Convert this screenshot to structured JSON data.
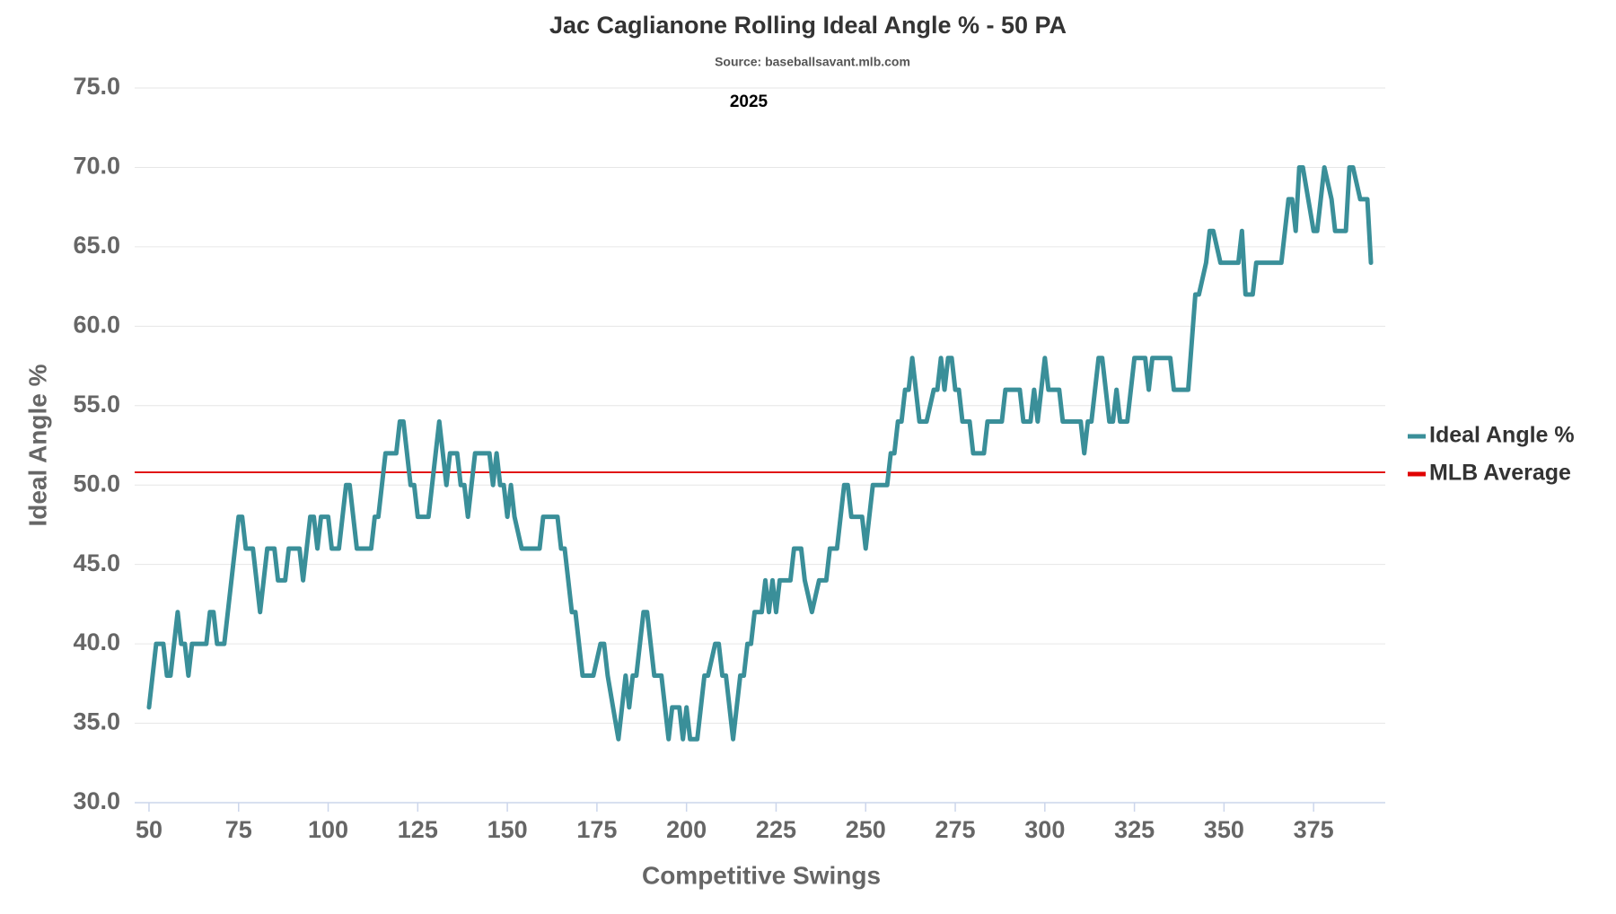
{
  "chart_data": {
    "type": "line",
    "title": "Jac Caglianone Rolling Ideal Angle % - 50 PA",
    "subtitle": "Source: baseballsavant.mlb.com",
    "annotation": "2025",
    "x_label": "Competitive Swings",
    "y_label": "Ideal Angle %",
    "xlim": [
      46,
      395
    ],
    "ylim": [
      30,
      75
    ],
    "xticks": [
      50,
      75,
      100,
      125,
      150,
      175,
      200,
      225,
      250,
      275,
      300,
      325,
      350,
      375
    ],
    "yticks": [
      {
        "value": 30,
        "label": "30.0"
      },
      {
        "value": 35,
        "label": "35.0"
      },
      {
        "value": 40,
        "label": "40.0"
      },
      {
        "value": 45,
        "label": "45.0"
      },
      {
        "value": 50,
        "label": "50.0"
      },
      {
        "value": 55,
        "label": "55.0"
      },
      {
        "value": 60,
        "label": "60.0"
      },
      {
        "value": 65,
        "label": "65.0"
      },
      {
        "value": 70,
        "label": "70.0"
      },
      {
        "value": 75,
        "label": "75.0"
      }
    ],
    "grid": true,
    "legend": "right",
    "x": [
      50,
      52,
      54,
      55,
      56,
      58,
      59,
      60,
      61,
      62,
      66,
      67,
      68,
      69,
      71,
      75,
      76,
      77,
      79,
      81,
      83,
      85,
      86,
      88,
      89,
      92,
      93,
      95,
      96,
      97,
      98,
      100,
      101,
      103,
      105,
      106,
      108,
      112,
      113,
      114,
      116,
      119,
      120,
      121,
      123,
      124,
      125,
      128,
      131,
      133,
      134,
      136,
      137,
      138,
      139,
      141,
      145,
      146,
      147,
      148,
      149,
      150,
      151,
      152,
      154,
      159,
      160,
      164,
      165,
      166,
      168,
      169,
      171,
      174,
      176,
      177,
      178,
      181,
      183,
      184,
      185,
      186,
      188,
      189,
      191,
      193,
      195,
      196,
      198,
      199,
      200,
      201,
      203,
      204,
      205,
      206,
      208,
      209,
      210,
      211,
      213,
      215,
      216,
      217,
      218,
      219,
      221,
      222,
      223,
      224,
      225,
      226,
      229,
      230,
      232,
      233,
      235,
      237,
      239,
      240,
      242,
      244,
      245,
      246,
      249,
      250,
      252,
      256,
      257,
      258,
      259,
      260,
      261,
      262,
      263,
      265,
      267,
      269,
      270,
      271,
      272,
      273,
      274,
      275,
      276,
      277,
      279,
      280,
      283,
      284,
      288,
      289,
      293,
      294,
      296,
      297,
      298,
      300,
      301,
      304,
      305,
      310,
      311,
      312,
      313,
      315,
      316,
      318,
      319,
      320,
      321,
      323,
      325,
      328,
      329,
      330,
      335,
      336,
      340,
      342,
      343,
      345,
      346,
      347,
      349,
      354,
      355,
      356,
      358,
      359,
      366,
      368,
      369,
      370,
      371,
      372,
      375,
      376,
      377,
      378,
      380,
      381,
      384,
      385,
      386,
      388,
      390,
      391
    ],
    "series": [
      {
        "name": "Ideal Angle %",
        "color": "#3a8f99",
        "values": [
          36,
          40,
          40,
          38,
          38,
          42,
          40,
          40,
          38,
          40,
          40,
          42,
          42,
          40,
          40,
          48,
          48,
          46,
          46,
          42,
          46,
          46,
          44,
          44,
          46,
          46,
          44,
          48,
          48,
          46,
          48,
          48,
          46,
          46,
          50,
          50,
          46,
          46,
          48,
          48,
          52,
          52,
          54,
          54,
          50,
          50,
          48,
          48,
          54,
          50,
          52,
          52,
          50,
          50,
          48,
          52,
          52,
          50,
          52,
          50,
          50,
          48,
          50,
          48,
          46,
          46,
          48,
          48,
          46,
          46,
          42,
          42,
          38,
          38,
          40,
          40,
          38,
          34,
          38,
          36,
          38,
          38,
          42,
          42,
          38,
          38,
          34,
          36,
          36,
          34,
          36,
          34,
          34,
          36,
          38,
          38,
          40,
          40,
          38,
          38,
          34,
          38,
          38,
          40,
          40,
          42,
          42,
          44,
          42,
          44,
          42,
          44,
          44,
          46,
          46,
          44,
          42,
          44,
          44,
          46,
          46,
          50,
          50,
          48,
          48,
          46,
          50,
          50,
          52,
          52,
          54,
          54,
          56,
          56,
          58,
          54,
          54,
          56,
          56,
          58,
          56,
          58,
          58,
          56,
          56,
          54,
          54,
          52,
          52,
          54,
          54,
          56,
          56,
          54,
          54,
          56,
          54,
          58,
          56,
          56,
          54,
          54,
          52,
          54,
          54,
          58,
          58,
          54,
          54,
          56,
          54,
          54,
          58,
          58,
          56,
          58,
          58,
          56,
          56,
          62,
          62,
          64,
          66,
          66,
          64,
          64,
          66,
          62,
          62,
          64,
          64,
          68,
          68,
          66,
          70,
          70,
          66,
          66,
          68,
          70,
          68,
          66,
          66,
          70,
          70,
          68,
          68,
          64
        ]
      }
    ],
    "reference_lines": [
      {
        "name": "MLB Average",
        "value": 50.8,
        "color": "#e00000"
      }
    ]
  }
}
